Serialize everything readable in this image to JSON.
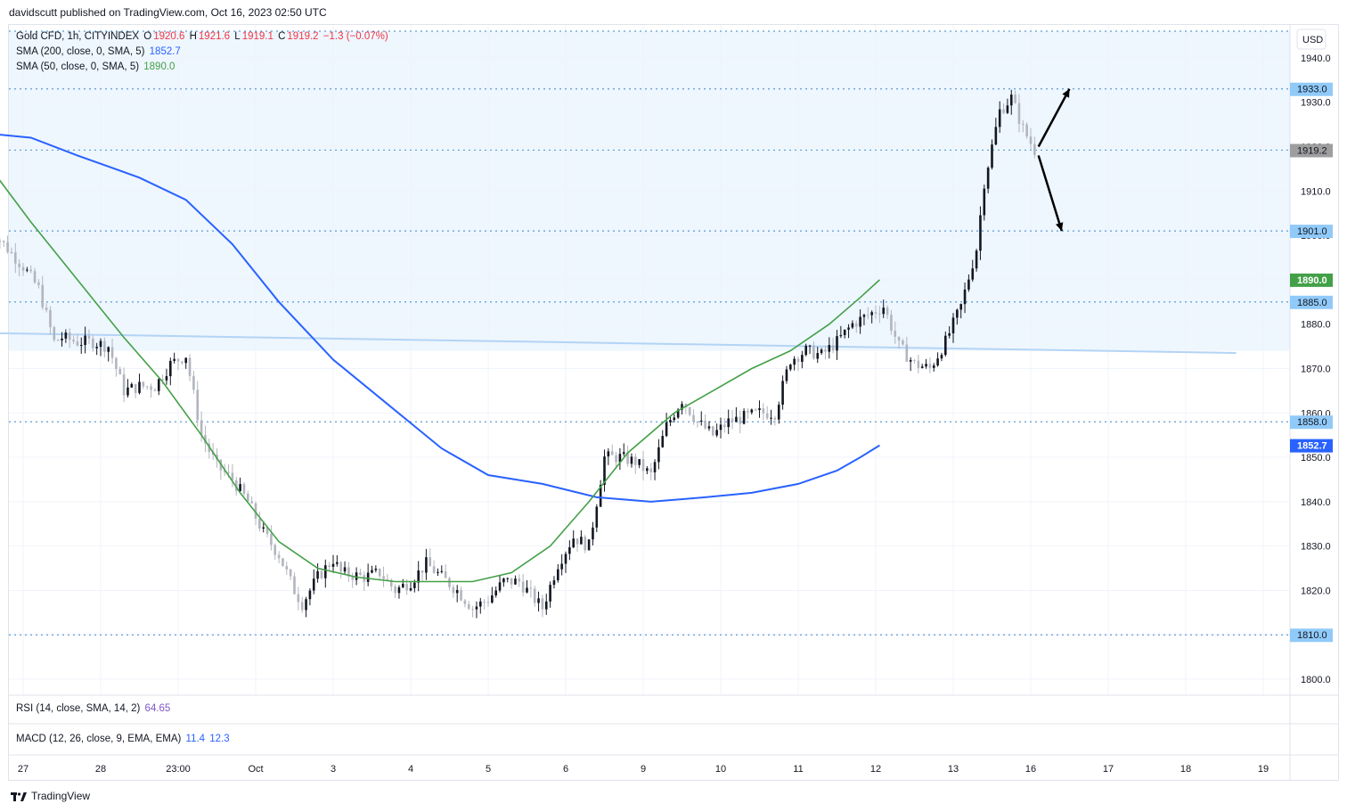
{
  "header": {
    "publisher_line": "davidscutt published on TradingView.com, Oct 16, 2023 02:50 UTC"
  },
  "legend": {
    "symbol": "Gold CFD, 1h, CITYINDEX",
    "o_label": "O",
    "o": "1920.6",
    "h_label": "H",
    "h": "1921.6",
    "l_label": "L",
    "l": "1919.1",
    "c_label": "C",
    "c": "1919.2",
    "change": "−1.3 (−0.07%)",
    "sma200_label": "SMA (200, close, 0, SMA, 5)",
    "sma200_value": "1852.7",
    "sma50_label": "SMA (50, close, 0, SMA, 5)",
    "sma50_value": "1890.0"
  },
  "indicators": {
    "rsi_label": "RSI (14, close, SMA, 14, 2)",
    "rsi_value": "64.65",
    "macd_label": "MACD (12, 26, close, 9, EMA, EMA)",
    "macd_value": "11.4",
    "macd_signal": "12.3"
  },
  "footer": {
    "brand": "TradingView"
  },
  "colors": {
    "sma200": "#2962ff",
    "sma50": "#43a047",
    "level_line": "#5b9bd5",
    "zone_fill": "#eef6fe",
    "trend_line": "#b3d4f5",
    "candle_up": "#131722",
    "candle_down": "#b2b5be",
    "last_price": "#9e9e9e"
  },
  "chart_data": {
    "type": "candlestick",
    "title": "Gold CFD, 1h, CITYINDEX",
    "currency": "USD",
    "ylim": [
      1798,
      1946
    ],
    "y_ticks": [
      "1800.0",
      "1810.0",
      "1820.0",
      "1830.0",
      "1840.0",
      "1850.0",
      "1860.0",
      "1870.0",
      "1880.0",
      "1890.0",
      "1900.0",
      "1910.0",
      "1920.0",
      "1930.0",
      "1940.0"
    ],
    "x_ticks": [
      "27",
      "28",
      "23:00",
      "Oct",
      "3",
      "4",
      "5",
      "6",
      "9",
      "10",
      "11",
      "12",
      "13",
      "16",
      "17",
      "18",
      "19"
    ],
    "x_tick_positions": [
      0.5,
      1.5,
      2.5,
      3.5,
      4.5,
      5.5,
      6.5,
      7.5,
      8.5,
      9.5,
      10.5,
      11.5,
      12.5,
      13.5,
      14.5,
      15.5,
      16.5
    ],
    "levels": [
      1946,
      1933.0,
      1919.2,
      1901.0,
      1885.0,
      1858.0,
      1810.0
    ],
    "price_tags": [
      {
        "label": "1933.0",
        "value": 1933.0,
        "kind": "level"
      },
      {
        "label": "1919.2",
        "value": 1919.2,
        "kind": "last"
      },
      {
        "label": "1901.0",
        "value": 1901.0,
        "kind": "level"
      },
      {
        "label": "1890.0",
        "value": 1890.0,
        "kind": "sma50"
      },
      {
        "label": "1885.0",
        "value": 1885.0,
        "kind": "level"
      },
      {
        "label": "1858.0",
        "value": 1858.0,
        "kind": "level"
      },
      {
        "label": "1852.7",
        "value": 1852.7,
        "kind": "sma200"
      },
      {
        "label": "1810.0",
        "value": 1810.0,
        "kind": "level"
      }
    ],
    "zone": [
      1878,
      1946
    ],
    "trend_line": [
      [
        0.0,
        1878.0
      ],
      [
        16.15,
        1873.5
      ]
    ],
    "closes": [
      [
        0.0,
        1900
      ],
      [
        0.15,
        1900
      ],
      [
        0.3,
        1897
      ],
      [
        0.5,
        1893
      ],
      [
        0.7,
        1888
      ],
      [
        0.9,
        1876
      ],
      [
        1.0,
        1877
      ],
      [
        1.2,
        1876
      ],
      [
        1.4,
        1876
      ],
      [
        1.6,
        1875
      ],
      [
        1.8,
        1865
      ],
      [
        2.0,
        1866
      ],
      [
        2.2,
        1866
      ],
      [
        2.4,
        1871
      ],
      [
        2.6,
        1873
      ],
      [
        2.8,
        1855
      ],
      [
        3.0,
        1848
      ],
      [
        3.2,
        1845
      ],
      [
        3.4,
        1840
      ],
      [
        3.6,
        1833
      ],
      [
        3.8,
        1828
      ],
      [
        4.0,
        1820
      ],
      [
        4.1,
        1817
      ],
      [
        4.3,
        1823
      ],
      [
        4.5,
        1827
      ],
      [
        4.6,
        1824
      ],
      [
        4.9,
        1823
      ],
      [
        5.1,
        1824
      ],
      [
        5.3,
        1820
      ],
      [
        5.5,
        1822
      ],
      [
        5.7,
        1826
      ],
      [
        5.9,
        1823
      ],
      [
        6.1,
        1820
      ],
      [
        6.3,
        1816
      ],
      [
        6.5,
        1818
      ],
      [
        6.7,
        1822
      ],
      [
        6.9,
        1822
      ],
      [
        7.2,
        1816
      ],
      [
        7.4,
        1826
      ],
      [
        7.6,
        1832
      ],
      [
        7.8,
        1830
      ],
      [
        8.0,
        1850
      ],
      [
        8.2,
        1850
      ],
      [
        8.4,
        1849
      ],
      [
        8.6,
        1846
      ],
      [
        8.8,
        1857
      ],
      [
        9.0,
        1863
      ],
      [
        9.2,
        1858
      ],
      [
        9.4,
        1855
      ],
      [
        9.6,
        1858
      ],
      [
        9.8,
        1859
      ],
      [
        10.0,
        1860
      ],
      [
        10.2,
        1860
      ],
      [
        10.4,
        1872
      ],
      [
        10.6,
        1874
      ],
      [
        10.8,
        1873
      ],
      [
        11.0,
        1876
      ],
      [
        11.2,
        1880
      ],
      [
        11.4,
        1882
      ],
      [
        11.6,
        1884
      ],
      [
        11.8,
        1875
      ],
      [
        12.0,
        1871
      ],
      [
        12.2,
        1870
      ],
      [
        12.4,
        1876
      ],
      [
        12.6,
        1884
      ],
      [
        12.8,
        1897
      ],
      [
        12.9,
        1912
      ],
      [
        13.0,
        1920
      ],
      [
        13.1,
        1928
      ],
      [
        13.25,
        1931
      ],
      [
        13.4,
        1924
      ],
      [
        13.55,
        1919.2
      ]
    ],
    "series": [
      {
        "name": "SMA (200, close, 0, SMA, 5)",
        "last": 1852.7,
        "points": [
          [
            0.0,
            1923
          ],
          [
            0.6,
            1922
          ],
          [
            1.2,
            1918
          ],
          [
            2.0,
            1913
          ],
          [
            2.6,
            1908
          ],
          [
            3.2,
            1898
          ],
          [
            3.8,
            1885
          ],
          [
            4.5,
            1872
          ],
          [
            5.2,
            1862
          ],
          [
            5.9,
            1852
          ],
          [
            6.5,
            1846
          ],
          [
            7.2,
            1844
          ],
          [
            7.9,
            1841
          ],
          [
            8.6,
            1840
          ],
          [
            9.3,
            1841
          ],
          [
            9.9,
            1842
          ],
          [
            10.5,
            1844
          ],
          [
            11.0,
            1847
          ],
          [
            11.3,
            1850
          ],
          [
            11.55,
            1852.7
          ]
        ]
      },
      {
        "name": "SMA (50, close, 0, SMA, 5)",
        "last": 1890.0,
        "points": [
          [
            0.0,
            1917
          ],
          [
            0.6,
            1903
          ],
          [
            1.2,
            1890
          ],
          [
            1.8,
            1877
          ],
          [
            2.3,
            1867
          ],
          [
            2.8,
            1855
          ],
          [
            3.3,
            1842
          ],
          [
            3.8,
            1831
          ],
          [
            4.3,
            1825
          ],
          [
            4.8,
            1823
          ],
          [
            5.3,
            1822
          ],
          [
            5.8,
            1822
          ],
          [
            6.3,
            1822
          ],
          [
            6.8,
            1824
          ],
          [
            7.3,
            1830
          ],
          [
            7.8,
            1840
          ],
          [
            8.3,
            1851
          ],
          [
            8.9,
            1860
          ],
          [
            9.4,
            1865
          ],
          [
            9.9,
            1870
          ],
          [
            10.4,
            1874
          ],
          [
            10.9,
            1880
          ],
          [
            11.3,
            1886
          ],
          [
            11.55,
            1890.0
          ]
        ]
      }
    ],
    "arrows": [
      {
        "from": [
          13.6,
          1920
        ],
        "to": [
          14.0,
          1933.0
        ]
      },
      {
        "from": [
          13.6,
          1918
        ],
        "to": [
          13.9,
          1901.0
        ]
      }
    ]
  }
}
